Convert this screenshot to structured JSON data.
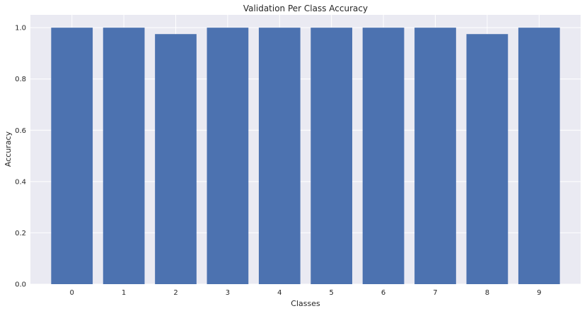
{
  "chart_data": {
    "type": "bar",
    "title": "Validation Per Class Accuracy",
    "xlabel": "Classes",
    "ylabel": "Accuracy",
    "categories": [
      "0",
      "1",
      "2",
      "3",
      "4",
      "5",
      "6",
      "7",
      "8",
      "9"
    ],
    "values": [
      1.0,
      1.0,
      0.975,
      1.0,
      1.0,
      1.0,
      1.0,
      1.0,
      0.975,
      1.0
    ],
    "ylim": [
      0,
      1.05
    ],
    "yticks": [
      0.0,
      0.2,
      0.4,
      0.6,
      0.8,
      1.0
    ],
    "ytick_labels": [
      "0.0",
      "0.2",
      "0.4",
      "0.6",
      "0.8",
      "1.0"
    ],
    "grid": true,
    "bar_color": "#4c72b0",
    "background_color": "#eaeaf2"
  }
}
